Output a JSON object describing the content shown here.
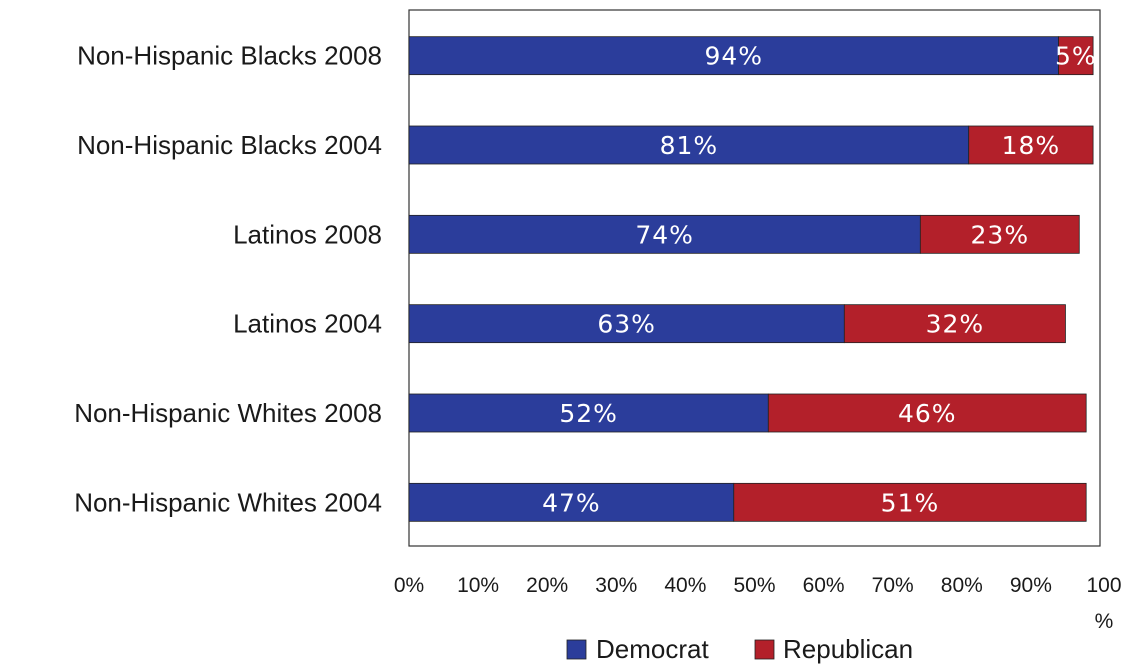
{
  "chart_data": {
    "type": "bar",
    "orientation": "horizontal",
    "stacked": true,
    "categories": [
      "Non-Hispanic Blacks 2008",
      "Non-Hispanic Blacks 2004",
      "Latinos 2008",
      "Latinos 2004",
      "Non-Hispanic Whites 2008",
      "Non-Hispanic Whites 2004"
    ],
    "series": [
      {
        "name": "Democrat",
        "color": "#2b3d9b",
        "values": [
          94,
          81,
          74,
          63,
          52,
          47
        ],
        "labels": [
          "94%",
          "81%",
          "74%",
          "63%",
          "52%",
          "47%"
        ]
      },
      {
        "name": "Republican",
        "color": "#b3202a",
        "values": [
          5,
          18,
          23,
          32,
          46,
          51
        ],
        "labels": [
          "5%",
          "18%",
          "23%",
          "32%",
          "46%",
          "51%"
        ]
      }
    ],
    "xlim": [
      0,
      100
    ],
    "x_ticks": [
      "0%",
      "10%",
      "20%",
      "30%",
      "40%",
      "50%",
      "60%",
      "70%",
      "80%",
      "90%"
    ],
    "x_tick_last": [
      "100",
      "%"
    ],
    "grid": false,
    "legend_position": "bottom"
  }
}
